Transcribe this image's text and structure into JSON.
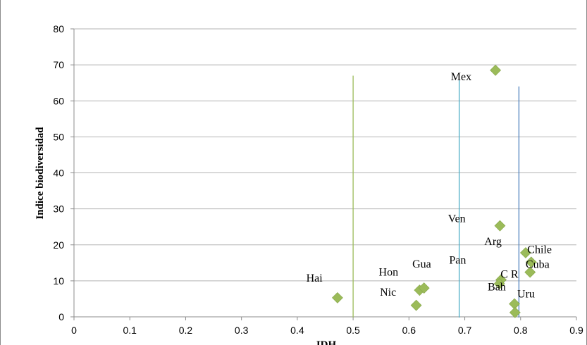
{
  "chart_data": {
    "type": "scatter",
    "title": "",
    "xlabel": "IDH",
    "ylabel": "Indice biodiversidad",
    "xlim": [
      0,
      0.9
    ],
    "ylim": [
      0,
      80
    ],
    "x_ticks": [
      "0",
      "0.1",
      "0.2",
      "0.3",
      "0.4",
      "0.5",
      "0.6",
      "0.7",
      "0.8",
      "0.9"
    ],
    "y_ticks": [
      "0",
      "10",
      "20",
      "30",
      "40",
      "50",
      "60",
      "70",
      "80"
    ],
    "grid": "horizontal",
    "legend": "none",
    "marker_color": "#9bbb59",
    "points": [
      {
        "x": 0.755,
        "y": 68.5
      },
      {
        "x": 0.763,
        "y": 25.3
      },
      {
        "x": 0.809,
        "y": 17.8
      },
      {
        "x": 0.819,
        "y": 15.2
      },
      {
        "x": 0.817,
        "y": 12.4
      },
      {
        "x": 0.765,
        "y": 10.3
      },
      {
        "x": 0.762,
        "y": 9.2
      },
      {
        "x": 0.789,
        "y": 3.6
      },
      {
        "x": 0.79,
        "y": 1.2
      },
      {
        "x": 0.472,
        "y": 5.3
      },
      {
        "x": 0.619,
        "y": 7.4
      },
      {
        "x": 0.627,
        "y": 8.0
      },
      {
        "x": 0.613,
        "y": 3.2
      }
    ],
    "labels": [
      {
        "text": "Mex",
        "x": 0.675,
        "y": 65.7
      },
      {
        "text": "Ven",
        "x": 0.67,
        "y": 26.3
      },
      {
        "text": "Arg",
        "x": 0.735,
        "y": 20.0
      },
      {
        "text": "Chile",
        "x": 0.812,
        "y": 17.7
      },
      {
        "text": "Cuba",
        "x": 0.809,
        "y": 13.6
      },
      {
        "text": "Pan",
        "x": 0.672,
        "y": 14.8
      },
      {
        "text": "Gua",
        "x": 0.606,
        "y": 13.7
      },
      {
        "text": "Hon",
        "x": 0.546,
        "y": 11.4
      },
      {
        "text": "Hai",
        "x": 0.416,
        "y": 9.8
      },
      {
        "text": "Nic",
        "x": 0.548,
        "y": 5.9
      },
      {
        "text": "C R",
        "x": 0.764,
        "y": 10.9
      },
      {
        "text": "Bah",
        "x": 0.741,
        "y": 7.3
      },
      {
        "text": "Uru",
        "x": 0.794,
        "y": 5.4
      }
    ],
    "reference_lines": [
      {
        "x": 0.5,
        "y_top": 67,
        "color": "#9bbb59"
      },
      {
        "x": 0.69,
        "y_top": 66,
        "color": "#4bacc6"
      },
      {
        "x": 0.797,
        "y_top": 64,
        "color": "#4f81bd"
      }
    ]
  }
}
